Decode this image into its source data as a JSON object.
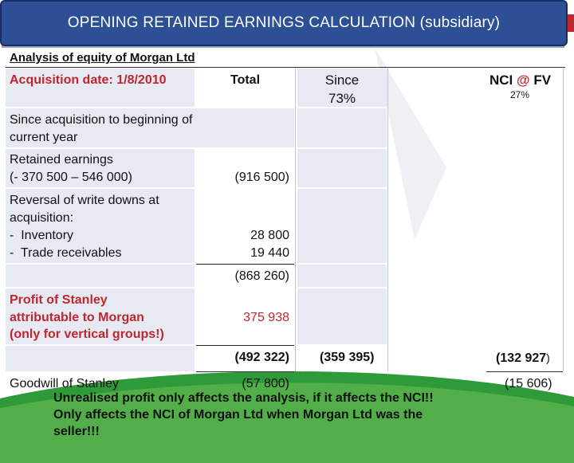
{
  "title": "OPENING RETAINED EARNINGS CALCULATION (subsidiary)",
  "subtitle": "Analysis of equity of Morgan Ltd",
  "header": {
    "acquisition": "Acquisition date: 1/8/2010",
    "total": "Total",
    "since": "Since",
    "since_pct": "73%",
    "nci": "NCI",
    "nci_at": "@",
    "nci_fv": "FV",
    "nci_pct": "27%"
  },
  "rows": {
    "since_acq": "Since acquisition to beginning of current year",
    "re_label_1": "Retained earnings",
    "re_label_2": "(- 370 500 – 546 000)",
    "re_total": "(916 500)",
    "rev_label_1": "Reversal of write downs at",
    "rev_label_2": "acquisition:",
    "rev_label_3": "-  Inventory",
    "rev_label_4": "-  Trade receivables",
    "inventory": "28 800",
    "receivables": "19 440",
    "subtotal": "(868 260)",
    "profit_label_1": "Profit of Stanley",
    "profit_label_2": "attributable to Morgan",
    "profit_label_3": "(only for vertical groups!)",
    "profit_total": "375 938",
    "total_after": "(492 322)",
    "since_after": "(359 395)",
    "nci_after": "(132 927",
    "nci_after_close": ")",
    "goodwill_label": "Goodwill of Stanley",
    "goodwill_total": "(57 800)",
    "goodwill_nci": "(15 606)"
  },
  "note": {
    "line1": "Unrealised profit only affects the analysis, if it affects the NCI!!",
    "line2": "Only affects the NCI of Morgan Ltd when Morgan Ltd was the",
    "line3": "seller!!!"
  }
}
